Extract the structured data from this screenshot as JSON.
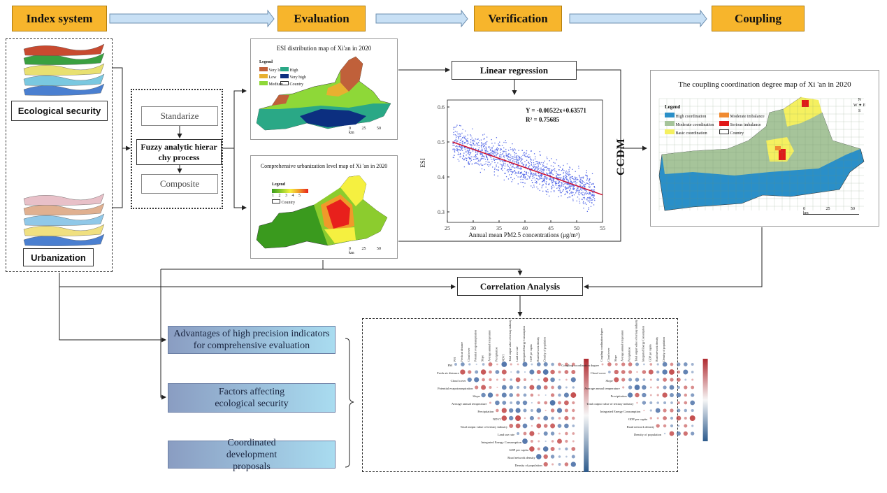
{
  "stages": [
    "Index system",
    "Evaluation",
    "Verification",
    "Coupling"
  ],
  "index_system": {
    "ecological_label": "Ecological security",
    "urbanization_label": "Urbanization"
  },
  "fahp": {
    "standardize": "Standarize",
    "process": "Fuzzy analytic hierar chy process",
    "composite": "Composite"
  },
  "esi_map": {
    "title": "ESI distribution map of Xi'an in 2020",
    "legend_title": "Legend",
    "legend": [
      "Very low",
      "Low",
      "Medium",
      "High",
      "Very high",
      "Country"
    ],
    "colors": [
      "#c0603a",
      "#e8b030",
      "#8ed838",
      "#2aa886",
      "#0c2f80",
      "#ffffff"
    ],
    "scale": [
      "0",
      "25",
      "50 km"
    ]
  },
  "urban_map": {
    "title": "Comprehensive urbanization level map of Xi 'an in 2020",
    "legend_title": "Legend",
    "legend_ticks": [
      "1",
      "2",
      "3",
      "4",
      "5"
    ],
    "colors": [
      "#3a9a1e",
      "#8ccc2e",
      "#f5f040",
      "#f09a2a",
      "#e8201c"
    ],
    "country": "Country",
    "scale": [
      "0",
      "25",
      "50 km"
    ]
  },
  "regression": {
    "label": "Linear regression",
    "equation": "Y = -0.00522x+0.63571",
    "r2": "R² = 0.75685"
  },
  "chart_data": {
    "type": "scatter",
    "xlabel": "Annual mean PM2.5 concentrations (μg/m³)",
    "ylabel": "ESI",
    "xlim": [
      25,
      55
    ],
    "ylim": [
      0.27,
      0.62
    ],
    "xticks": [
      "25",
      "30",
      "35",
      "40",
      "45",
      "50",
      "55"
    ],
    "yticks": [
      "0.3",
      "0.4",
      "0.5",
      "0.6"
    ],
    "fit": {
      "slope": -0.00522,
      "intercept": 0.63571,
      "x_range": [
        26,
        55
      ]
    },
    "point_color": "#5a6ee8",
    "line_color": "#d01030"
  },
  "ccdm_label": "CCDM",
  "coupling_map": {
    "title": "The coupling coordination degree map of Xi 'an in 2020",
    "legend_title": "Legend",
    "legend": [
      "High coordination",
      "Moderate coordination",
      "Basic coordination",
      "Moderate imbalance",
      "Serious imbalance",
      "Country"
    ],
    "colors": [
      "#2a8fc8",
      "#a6c49a",
      "#f5f060",
      "#f08a30",
      "#e01818",
      "#ffffff"
    ],
    "scale": [
      "0",
      "25",
      "50 km"
    ],
    "compass": [
      "N",
      "W",
      "E",
      "S"
    ]
  },
  "correlation": {
    "label": "Correlation Analysis",
    "matrix1_rows": [
      "PM",
      "Fresh air distance",
      "Cloud cover",
      "Potential evapotranspiration",
      "Slope",
      "Average annual temperature",
      "Precipitation",
      "NDVI",
      "Total output value of tertiary industry",
      "Land use rate",
      "Integrated Energy Consumption",
      "GDP per capita",
      "Road network density",
      "Density of population"
    ],
    "matrix2_rows": [
      "Coupling coordination degree",
      "Cloud cover",
      "Slope",
      "Average annual temperature",
      "Precipitation",
      "Total output value of tertiary industry",
      "Integrated Energy Consumption",
      "GDP per capita",
      "Road network density",
      "Density of population"
    ]
  },
  "outcomes": [
    "Advantages of high precision indicators for comprehensive evaluation",
    "Factors affecting ecological security",
    "Coordinated development proposals"
  ]
}
